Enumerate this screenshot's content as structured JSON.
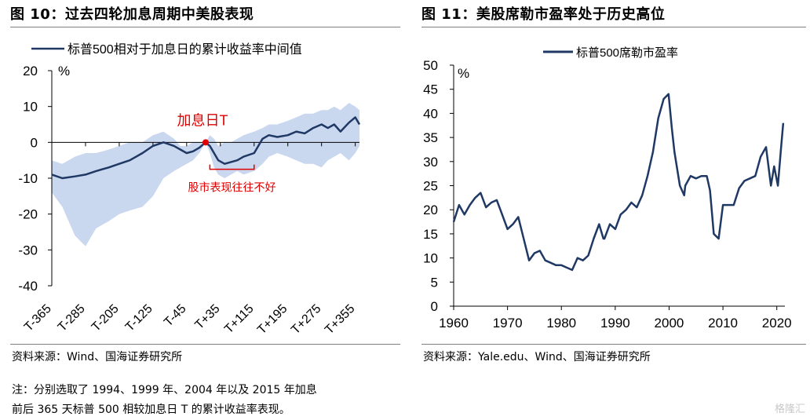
{
  "left": {
    "title": "图 10：过去四轮加息周期中美股表现",
    "source": "资料来源：Wind、国海证券研究所",
    "note_line1": "注：分别选取了 1994、1999 年、2004 年以及 2015 年加息",
    "note_line2": "前后 365 天标普 500 相较加息日 T 的累计收益率表现。"
  },
  "right": {
    "title": "图 11：美股席勒市盈率处于历史高位",
    "source": "资料来源：Yale.edu、Wind、国海证券研究所"
  },
  "watermark": "格隆汇",
  "colors": {
    "line": "#1f3864",
    "band": "#c9d7ef",
    "marker": "#e00000",
    "annotation": "#e00000"
  },
  "chart_data": [
    {
      "type": "area",
      "legend": "标普500相对于加息日的累计收益率中间值",
      "legend_position": "top-left",
      "y_unit": "%",
      "ylim": [
        -40,
        20
      ],
      "yticks": [
        20,
        10,
        0,
        -10,
        -20,
        -30,
        -40
      ],
      "xlim": [
        -365,
        365
      ],
      "xticks": [
        -365,
        -285,
        -205,
        -125,
        -45,
        35,
        115,
        195,
        275,
        355
      ],
      "xtick_labels": [
        "T-365",
        "T-285",
        "T-205",
        "T-125",
        "T-45",
        "T+35",
        "T+115",
        "T+195",
        "T+275",
        "T+355"
      ],
      "grid": false,
      "annotation_top": "加息日T",
      "annotation_bottom": "股市表现往往不好",
      "marker": {
        "x": 0,
        "y": 0
      },
      "bracket_x": [
        10,
        115
      ],
      "series": [
        {
          "name": "标普500相对于加息日的累计收益率中间值",
          "x": [
            -365,
            -340,
            -310,
            -285,
            -260,
            -230,
            -205,
            -180,
            -150,
            -125,
            -100,
            -75,
            -60,
            -45,
            -30,
            -15,
            0,
            10,
            20,
            30,
            45,
            60,
            75,
            90,
            115,
            135,
            150,
            170,
            195,
            215,
            235,
            255,
            275,
            290,
            305,
            320,
            340,
            355,
            365
          ],
          "y": [
            -9,
            -10,
            -9.5,
            -9,
            -8,
            -7,
            -6,
            -5,
            -3,
            -1,
            0,
            -1,
            -2,
            -3,
            -2.5,
            -1.5,
            0,
            -1,
            -3,
            -5,
            -6,
            -5.5,
            -5,
            -4,
            -3,
            1,
            2,
            1.5,
            2,
            3,
            2.5,
            4,
            5,
            4,
            5,
            3,
            5.5,
            7,
            5
          ]
        },
        {
          "name": "upper",
          "x": [
            -365,
            -340,
            -310,
            -285,
            -260,
            -230,
            -205,
            -180,
            -150,
            -125,
            -100,
            -75,
            -60,
            -45,
            -30,
            -15,
            0,
            10,
            20,
            30,
            45,
            60,
            75,
            90,
            115,
            135,
            150,
            170,
            195,
            215,
            235,
            255,
            275,
            290,
            305,
            320,
            340,
            355,
            365
          ],
          "y": [
            -5,
            -6,
            -4,
            -3,
            -3,
            -2,
            -1,
            0,
            0,
            2,
            3,
            1,
            -1,
            -1,
            0,
            0,
            0,
            2,
            1,
            -1,
            0,
            0,
            1,
            2,
            3,
            4,
            5,
            5,
            6,
            7,
            8,
            8,
            9,
            9,
            10,
            9,
            11,
            10,
            9
          ]
        },
        {
          "name": "lower",
          "x": [
            -365,
            -340,
            -310,
            -285,
            -260,
            -230,
            -205,
            -180,
            -150,
            -125,
            -100,
            -75,
            -60,
            -45,
            -30,
            -15,
            0,
            10,
            20,
            30,
            45,
            60,
            75,
            90,
            115,
            135,
            150,
            170,
            195,
            215,
            235,
            255,
            275,
            290,
            305,
            320,
            340,
            355,
            365
          ],
          "y": [
            -14,
            -18,
            -26,
            -29,
            -24,
            -22,
            -20,
            -19,
            -18,
            -15,
            -10,
            -8,
            -7,
            -6,
            -5,
            -3,
            0,
            -3,
            -7,
            -9,
            -10,
            -9,
            -8,
            -9,
            -8,
            -6,
            -4,
            -3,
            -4,
            -5,
            -6,
            -6,
            -7,
            -5,
            -4,
            -3,
            -5,
            -3,
            -1
          ]
        }
      ]
    },
    {
      "type": "line",
      "legend": "标普500席勒市盈率",
      "legend_position": "top-center",
      "y_unit": "%",
      "ylim": [
        0,
        50
      ],
      "yticks": [
        50,
        45,
        40,
        35,
        30,
        25,
        20,
        15,
        10,
        5,
        0
      ],
      "xlim": [
        1960,
        2021.5
      ],
      "xticks": [
        1960,
        1970,
        1980,
        1990,
        2000,
        2010,
        2020
      ],
      "grid": false,
      "series": [
        {
          "name": "标普500席勒市盈率",
          "x": [
            1960,
            1961,
            1962,
            1963,
            1964,
            1965,
            1966,
            1967,
            1968,
            1969,
            1970,
            1971,
            1972,
            1973,
            1974,
            1975,
            1976,
            1977,
            1978,
            1979,
            1980,
            1981,
            1982,
            1983,
            1984,
            1985,
            1986,
            1987,
            1987.8,
            1988,
            1989,
            1990,
            1991,
            1992,
            1993,
            1994,
            1995,
            1996,
            1997,
            1998,
            1999,
            1999.9,
            2000.5,
            2001,
            2002,
            2002.8,
            2003,
            2004,
            2005,
            2006,
            2007,
            2007.6,
            2008.3,
            2009.2,
            2010,
            2011,
            2012,
            2013,
            2014,
            2015,
            2016,
            2017,
            2018,
            2018.9,
            2019.5,
            2020.2,
            2020.8,
            2021.2
          ],
          "y": [
            17.5,
            21,
            19,
            21,
            22.5,
            23.5,
            20.5,
            21.5,
            22,
            19,
            16,
            17,
            18.5,
            14,
            9.5,
            11,
            11.5,
            9.5,
            9,
            8.5,
            8.5,
            8,
            7.5,
            10,
            9.5,
            10.5,
            14,
            17,
            14,
            14,
            17,
            16,
            19,
            20,
            21.5,
            20.5,
            23,
            27,
            32,
            39,
            43,
            44,
            37,
            32,
            25,
            23,
            25,
            27,
            26.5,
            27,
            27,
            24,
            15,
            14,
            21,
            21,
            21,
            24.5,
            26,
            26.5,
            27,
            31,
            33,
            25,
            29,
            25,
            33,
            38
          ]
        }
      ]
    }
  ]
}
